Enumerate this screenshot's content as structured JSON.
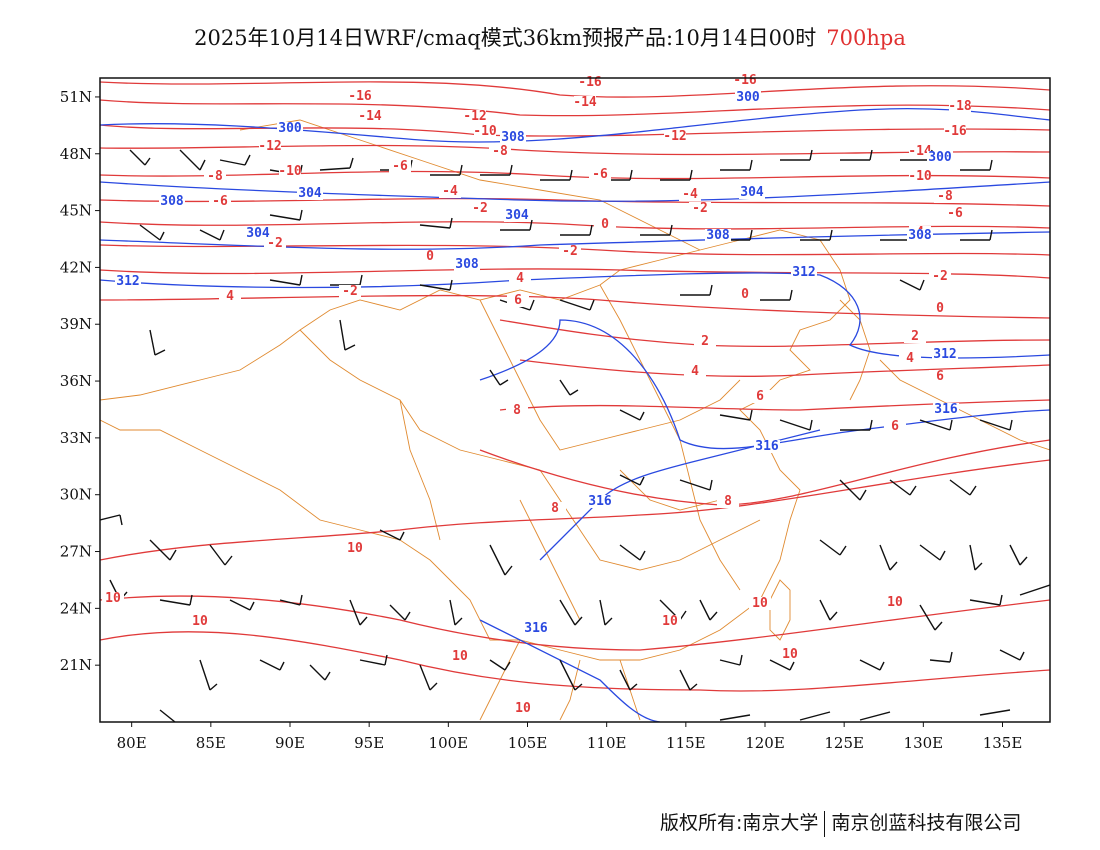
{
  "title": {
    "main": "2025年10月14日WRF/cmaq模式36km预报产品:10月14日00时",
    "level": "700hpa"
  },
  "footer": {
    "left": "版权所有:南京大学",
    "right": "南京创蓝科技有限公司"
  },
  "map": {
    "lon_range": [
      78,
      138
    ],
    "lat_range": [
      18,
      52
    ],
    "lon_ticks": [
      80,
      85,
      90,
      95,
      100,
      105,
      110,
      115,
      120,
      125,
      130,
      135
    ],
    "lat_ticks": [
      21,
      24,
      27,
      30,
      33,
      36,
      39,
      42,
      45,
      48,
      51
    ],
    "lon_tick_labels": [
      "80E",
      "85E",
      "90E",
      "95E",
      "100E",
      "105E",
      "110E",
      "115E",
      "120E",
      "125E",
      "130E",
      "135E"
    ],
    "lat_tick_labels": [
      "21N",
      "24N",
      "27N",
      "30N",
      "33N",
      "36N",
      "39N",
      "42N",
      "45N",
      "48N",
      "51N"
    ],
    "colors": {
      "temperature": "#e03a3a",
      "height": "#2a49e0",
      "boundary": "#e08a30",
      "wind": "#111111"
    },
    "temperature_labels": [
      "-16",
      "-18",
      "-14",
      "-12",
      "-10",
      "-8",
      "-6",
      "-4",
      "-2",
      "0",
      "2",
      "4",
      "6",
      "8",
      "10"
    ],
    "height_labels": [
      "300",
      "304",
      "308",
      "312",
      "316"
    ]
  }
}
